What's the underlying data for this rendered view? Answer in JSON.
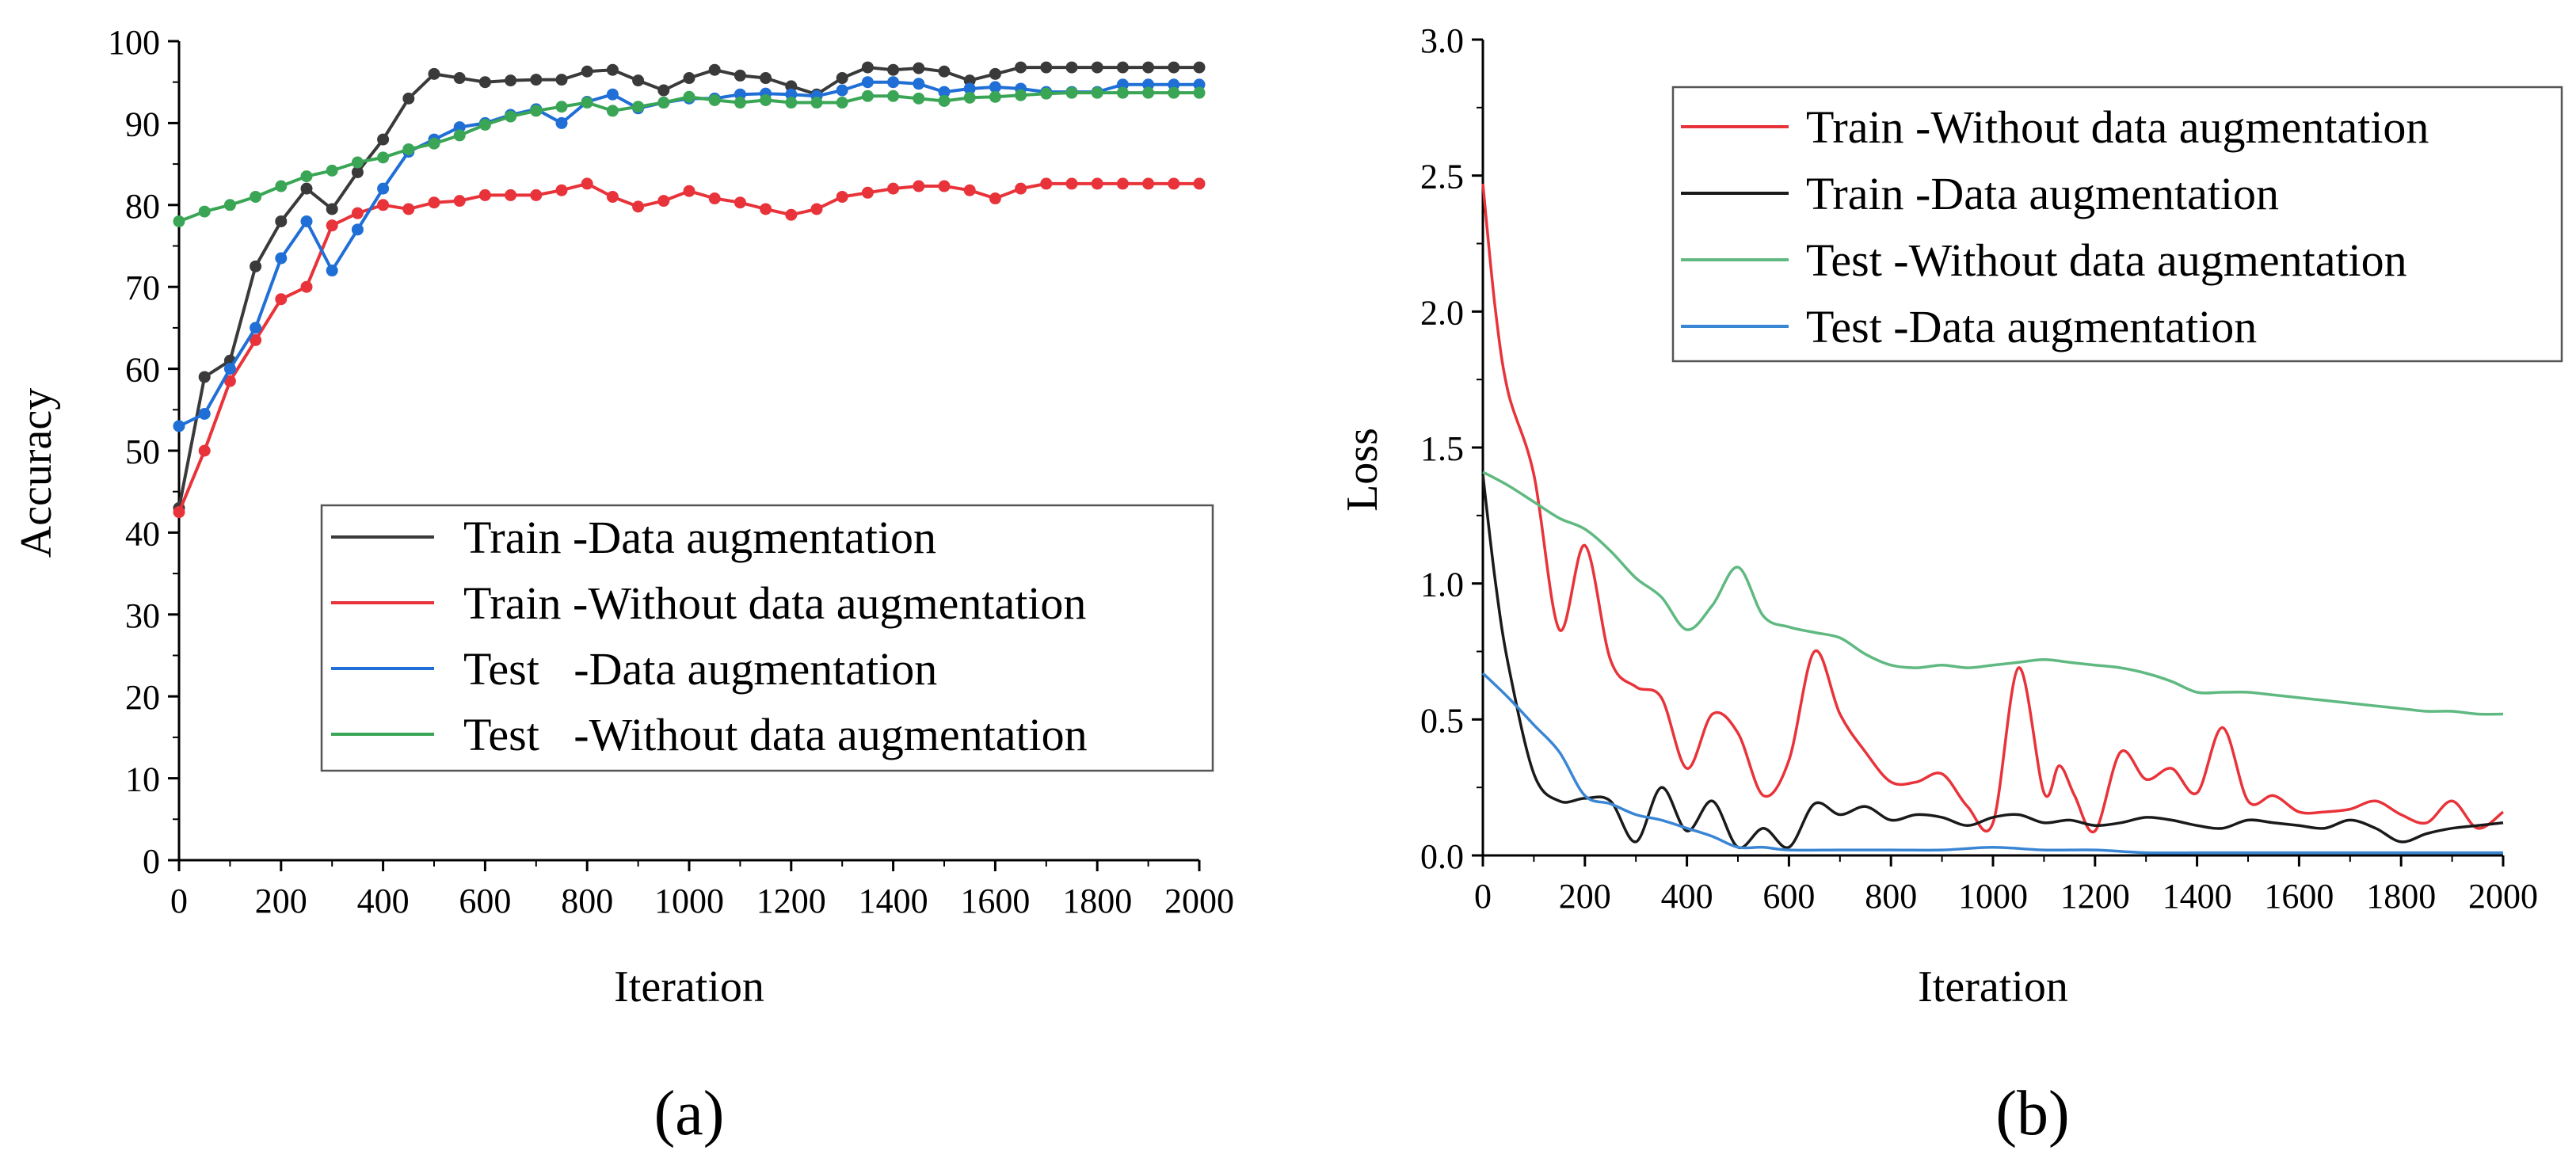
{
  "chart_data": [
    {
      "type": "line",
      "panel_label": "(a)",
      "xlabel": "Iteration",
      "ylabel": "Accuracy",
      "xlim": [
        0,
        2000
      ],
      "ylim": [
        0,
        100
      ],
      "xticks": [
        0,
        200,
        400,
        600,
        800,
        1000,
        1200,
        1400,
        1600,
        1800,
        2000
      ],
      "yticks": [
        0,
        10,
        20,
        30,
        40,
        50,
        60,
        70,
        80,
        90,
        100
      ],
      "markers": true,
      "legend_position": "lower-right",
      "grid": false,
      "x": [
        0,
        50,
        100,
        150,
        200,
        250,
        300,
        350,
        400,
        450,
        500,
        550,
        600,
        650,
        700,
        750,
        800,
        850,
        900,
        950,
        1000,
        1050,
        1100,
        1150,
        1200,
        1250,
        1300,
        1350,
        1400,
        1450,
        1500,
        1550,
        1600,
        1650,
        1700,
        1750,
        1800,
        1850,
        1900,
        1950,
        2000
      ],
      "series": [
        {
          "name": "Train -Data augmentation",
          "color": "#3a3a3a",
          "values": [
            43,
            59,
            61,
            72.5,
            78,
            82,
            79.5,
            84,
            88,
            93,
            96,
            95.5,
            95,
            95.2,
            95.3,
            95.3,
            96.3,
            96.5,
            95.2,
            94,
            95.5,
            96.5,
            95.8,
            95.5,
            94.5,
            93.5,
            95.5,
            96.8,
            96.5,
            96.7,
            96.3,
            95.2,
            96,
            96.8,
            96.8,
            96.8,
            96.8,
            96.8,
            96.8,
            96.8,
            96.8
          ]
        },
        {
          "name": "Train -Without data augmentation",
          "color": "#e8333a",
          "values": [
            42.5,
            50,
            58.5,
            63.5,
            68.5,
            70,
            77.5,
            79,
            80,
            79.5,
            80.3,
            80.5,
            81.2,
            81.2,
            81.2,
            81.8,
            82.6,
            81,
            79.8,
            80.5,
            81.7,
            80.8,
            80.3,
            79.5,
            78.8,
            79.5,
            81,
            81.5,
            82,
            82.3,
            82.3,
            81.8,
            80.8,
            82,
            82.6,
            82.6,
            82.6,
            82.6,
            82.6,
            82.6,
            82.6
          ]
        },
        {
          "name": "Test   -Data augmentation",
          "color": "#1f6fd6",
          "values": [
            53,
            54.5,
            60,
            65,
            73.5,
            78,
            72,
            77,
            82,
            86.5,
            88,
            89.5,
            90,
            91,
            91.7,
            90,
            92.6,
            93.5,
            91.8,
            92.5,
            93,
            93,
            93.5,
            93.6,
            93.5,
            93.3,
            94,
            95,
            95,
            94.8,
            93.8,
            94.2,
            94.4,
            94.2,
            93.8,
            93.8,
            93.8,
            94.7,
            94.7,
            94.7,
            94.7
          ]
        },
        {
          "name": "Test   -Without data augmentation",
          "color": "#3aa655",
          "values": [
            78,
            79.2,
            80,
            81,
            82.3,
            83.5,
            84.2,
            85.2,
            85.8,
            86.8,
            87.5,
            88.5,
            89.8,
            90.8,
            91.5,
            92,
            92.5,
            91.5,
            92,
            92.5,
            93.2,
            92.8,
            92.5,
            92.8,
            92.5,
            92.5,
            92.5,
            93.3,
            93.3,
            93,
            92.7,
            93.1,
            93.2,
            93.4,
            93.6,
            93.7,
            93.7,
            93.7,
            93.7,
            93.7,
            93.7
          ]
        }
      ]
    },
    {
      "type": "line",
      "panel_label": "(b)",
      "xlabel": "Iteration",
      "ylabel": "Loss",
      "xlim": [
        0,
        2000
      ],
      "ylim": [
        0,
        3.0
      ],
      "xticks": [
        0,
        200,
        400,
        600,
        800,
        1000,
        1200,
        1400,
        1600,
        1800,
        2000
      ],
      "yticks": [
        0.0,
        0.5,
        1.0,
        1.5,
        2.0,
        2.5,
        3.0
      ],
      "ytick_labels": [
        "0.0",
        "0.5",
        "1.0",
        "1.5",
        "2.0",
        "2.5",
        "3.0"
      ],
      "markers": false,
      "legend_position": "top-right",
      "grid": false,
      "series": [
        {
          "name": "Train -Without data augmentation",
          "color": "#e8333a",
          "x": [
            0,
            25,
            50,
            100,
            150,
            200,
            250,
            300,
            350,
            400,
            450,
            500,
            550,
            600,
            650,
            700,
            750,
            800,
            850,
            900,
            950,
            1000,
            1050,
            1100,
            1130,
            1160,
            1200,
            1250,
            1300,
            1350,
            1400,
            1450,
            1500,
            1550,
            1600,
            1650,
            1700,
            1750,
            1800,
            1850,
            1900,
            1950,
            2000
          ],
          "values": [
            2.47,
            2.0,
            1.7,
            1.4,
            0.83,
            1.14,
            0.72,
            0.62,
            0.58,
            0.32,
            0.52,
            0.45,
            0.22,
            0.35,
            0.75,
            0.52,
            0.38,
            0.27,
            0.27,
            0.3,
            0.18,
            0.12,
            0.69,
            0.23,
            0.33,
            0.22,
            0.09,
            0.38,
            0.28,
            0.32,
            0.23,
            0.47,
            0.2,
            0.22,
            0.16,
            0.16,
            0.17,
            0.2,
            0.15,
            0.12,
            0.2,
            0.1,
            0.16
          ]
        },
        {
          "name": "Train -Data augmentation",
          "color": "#1a1a1a",
          "x": [
            0,
            25,
            50,
            100,
            150,
            200,
            250,
            300,
            350,
            400,
            450,
            500,
            550,
            600,
            650,
            700,
            750,
            800,
            850,
            900,
            950,
            1000,
            1050,
            1100,
            1150,
            1200,
            1250,
            1300,
            1350,
            1400,
            1450,
            1500,
            1550,
            1600,
            1650,
            1700,
            1750,
            1800,
            1850,
            1900,
            1950,
            2000
          ],
          "values": [
            1.4,
            1.0,
            0.7,
            0.3,
            0.2,
            0.21,
            0.2,
            0.05,
            0.25,
            0.09,
            0.2,
            0.03,
            0.1,
            0.03,
            0.19,
            0.15,
            0.18,
            0.13,
            0.15,
            0.14,
            0.11,
            0.14,
            0.15,
            0.12,
            0.13,
            0.11,
            0.12,
            0.14,
            0.13,
            0.11,
            0.1,
            0.13,
            0.12,
            0.11,
            0.1,
            0.13,
            0.1,
            0.05,
            0.08,
            0.1,
            0.11,
            0.12
          ]
        },
        {
          "name": "Test -Without data augmentation",
          "color": "#5fb981",
          "x": [
            0,
            50,
            100,
            150,
            200,
            250,
            300,
            350,
            400,
            450,
            500,
            550,
            600,
            650,
            700,
            750,
            800,
            850,
            900,
            950,
            1000,
            1050,
            1100,
            1150,
            1200,
            1250,
            1300,
            1350,
            1400,
            1450,
            1500,
            1550,
            1600,
            1650,
            1700,
            1750,
            1800,
            1850,
            1900,
            1950,
            2000
          ],
          "values": [
            1.41,
            1.36,
            1.3,
            1.24,
            1.2,
            1.12,
            1.02,
            0.95,
            0.83,
            0.92,
            1.06,
            0.88,
            0.84,
            0.82,
            0.8,
            0.74,
            0.7,
            0.69,
            0.7,
            0.69,
            0.7,
            0.71,
            0.72,
            0.71,
            0.7,
            0.69,
            0.67,
            0.64,
            0.6,
            0.6,
            0.6,
            0.59,
            0.58,
            0.57,
            0.56,
            0.55,
            0.54,
            0.53,
            0.53,
            0.52,
            0.52
          ]
        },
        {
          "name": "Test -Data augmentation",
          "color": "#3a86d4",
          "x": [
            0,
            50,
            100,
            150,
            200,
            250,
            300,
            350,
            400,
            450,
            500,
            550,
            600,
            700,
            800,
            900,
            1000,
            1100,
            1200,
            1300,
            1400,
            1500,
            1600,
            1700,
            1800,
            1900,
            2000
          ],
          "values": [
            0.67,
            0.58,
            0.48,
            0.38,
            0.22,
            0.19,
            0.15,
            0.13,
            0.1,
            0.07,
            0.03,
            0.03,
            0.02,
            0.02,
            0.02,
            0.02,
            0.03,
            0.02,
            0.02,
            0.01,
            0.01,
            0.01,
            0.01,
            0.01,
            0.01,
            0.01,
            0.01
          ]
        }
      ]
    }
  ]
}
